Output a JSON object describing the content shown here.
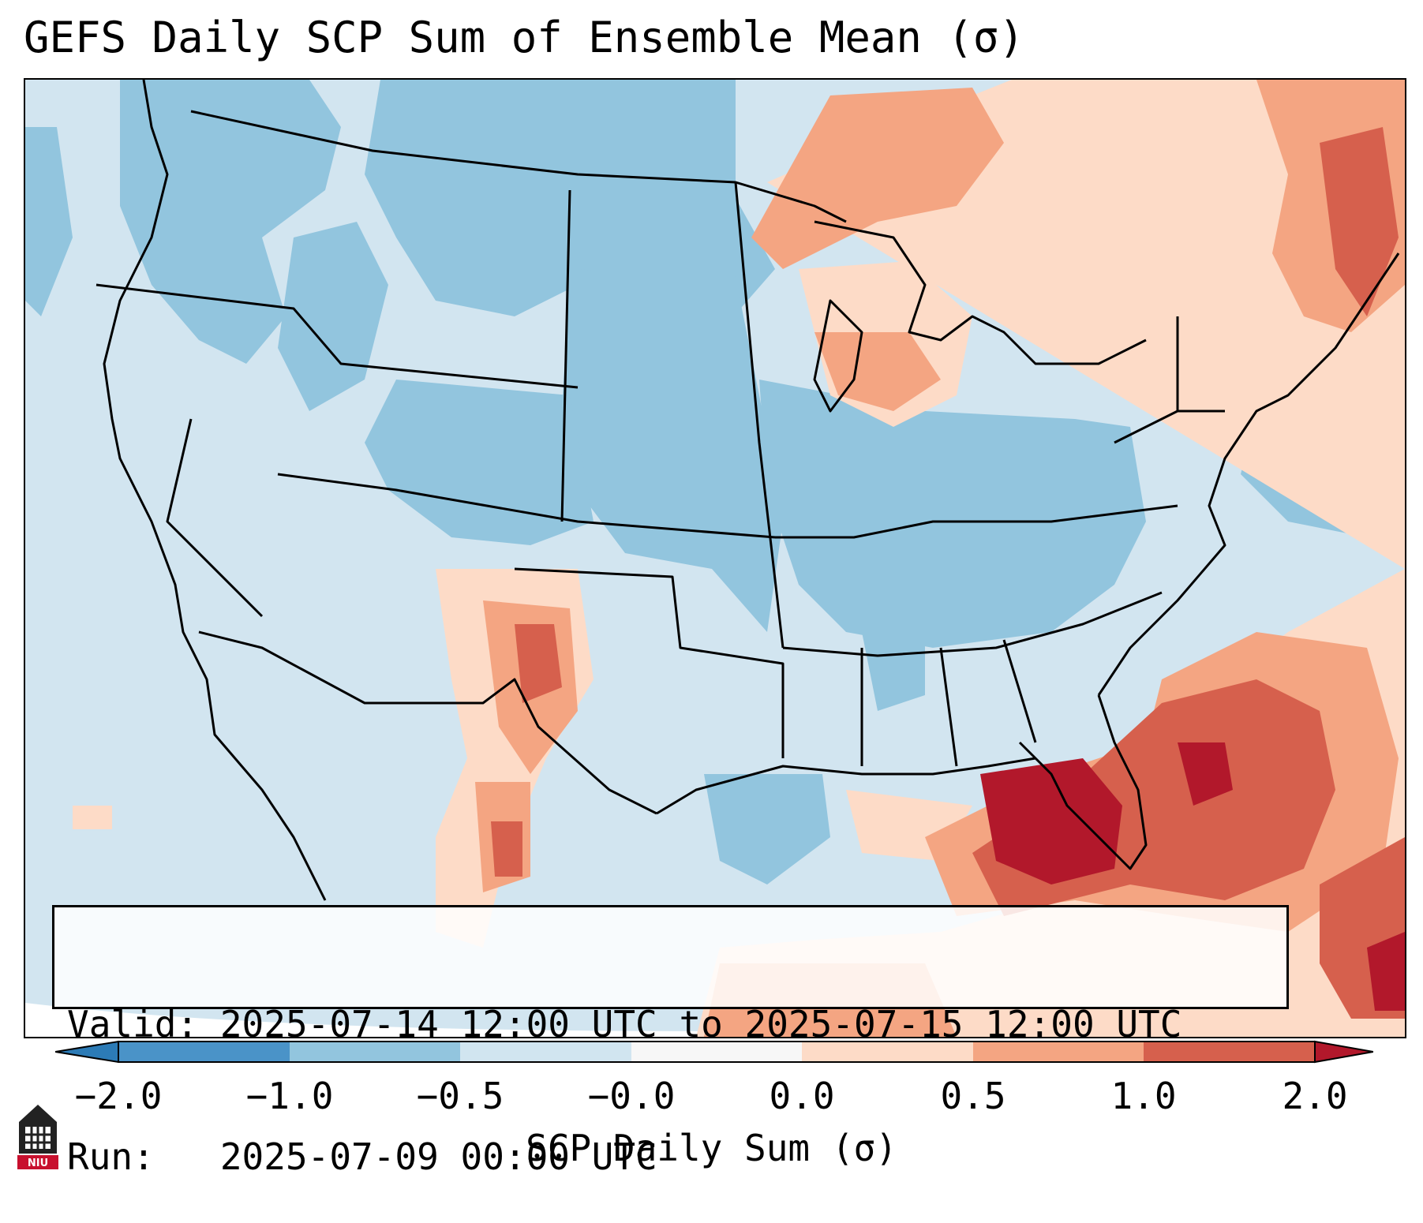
{
  "title": "GEFS Daily SCP Sum of Ensemble Mean (σ)",
  "info": {
    "valid_line": "Valid: 2025-07-14 12:00 UTC to 2025-07-15 12:00 UTC",
    "run_line": "Run:   2025-07-09 00:00 UTC"
  },
  "colorbar": {
    "label": "SCP Daily Sum (σ)",
    "ticks": [
      "−2.0",
      "−1.0",
      "−0.5",
      "−0.0",
      "0.0",
      "0.5",
      "1.0",
      "2.0"
    ],
    "bins": [
      {
        "range": "< -2.0",
        "color": "#2c7bb6"
      },
      {
        "range": "-2.0 to -1.0",
        "color": "#4a93c8"
      },
      {
        "range": "-1.0 to -0.5",
        "color": "#92c5de"
      },
      {
        "range": "-0.5 to -0.0",
        "color": "#d1e5f0"
      },
      {
        "range": "-0.0 to 0.0",
        "color": "#f7f7f7"
      },
      {
        "range": "0.0 to 0.5",
        "color": "#fddbc7"
      },
      {
        "range": "0.5 to 1.0",
        "color": "#f4a582"
      },
      {
        "range": "1.0 to 2.0",
        "color": "#d6604d"
      },
      {
        "range": "> 2.0",
        "color": "#b2182b"
      }
    ]
  },
  "map": {
    "region": "Contiguous United States and surrounding areas",
    "background_category": "-0.5 to -0.0",
    "anomalies": [
      {
        "area": "Florida / Southeast Gulf",
        "category": "> 2.0"
      },
      {
        "area": "Atlantic off Southeast coast",
        "category": "1.0 to 2.0"
      },
      {
        "area": "Eastern New Mexico / West Texas",
        "category": "0.5 to 1.0"
      },
      {
        "area": "Upper Great Lakes / Ontario",
        "category": "0.5 to 1.0"
      },
      {
        "area": "Quebec / Maritimes",
        "category": "0.5 to 1.0"
      },
      {
        "area": "Northern Plains / Rockies",
        "category": "-1.0 to -0.5"
      },
      {
        "area": "Ohio Valley / Mid-South",
        "category": "-1.0 to -0.5"
      }
    ]
  },
  "logo": {
    "text": "NIU"
  }
}
